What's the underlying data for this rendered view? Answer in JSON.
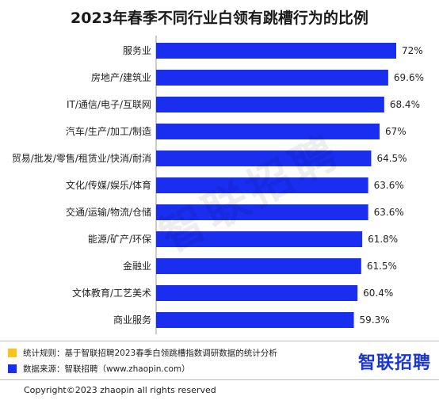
{
  "title": "2023年春季不同行业白领有跳槽行为的比例",
  "watermark": "智联招聘",
  "chart_data": {
    "type": "bar",
    "orientation": "horizontal",
    "title": "2023年春季不同行业白领有跳槽行为的比例",
    "categories": [
      "服务业",
      "房地产/建筑业",
      "IT/通信/电子/互联网",
      "汽车/生产/加工/制造",
      "贸易/批发/零售/租赁业/快消/耐消",
      "文化/传媒/娱乐/体育",
      "交通/运输/物流/仓储",
      "能源/矿产/环保",
      "金融业",
      "文体教育/工艺美术",
      "商业服务"
    ],
    "values": [
      72,
      69.6,
      68.4,
      67,
      64.5,
      63.6,
      63.6,
      61.8,
      61.5,
      60.4,
      59.3
    ],
    "value_labels": [
      "72%",
      "69.6%",
      "68.4%",
      "67%",
      "64.5%",
      "63.6%",
      "63.6%",
      "61.8%",
      "61.5%",
      "60.4%",
      "59.3%"
    ],
    "bar_color": "#1a2ef0",
    "xlim": [
      0,
      72
    ]
  },
  "notes": {
    "rule_color": "#f5c518",
    "rule_text": "统计规则：基于智联招聘2023春季白领跳槽指数调研数据的统计分析",
    "source_color": "#1a2ef0",
    "source_text": "数据来源：智联招聘（www.zhaopin.com）"
  },
  "logo": "智联招聘",
  "copyright": "Copyright©2023 zhaopin all rights reserved"
}
